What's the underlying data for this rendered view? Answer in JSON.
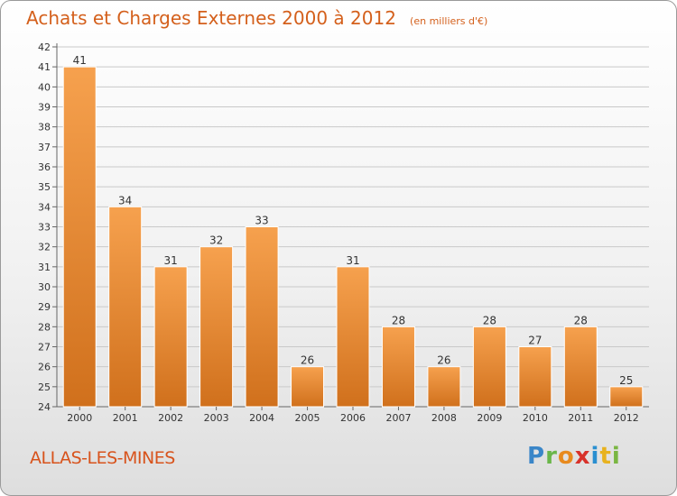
{
  "header": {
    "title": "Achats et Charges Externes 2000 à 2012",
    "unit": "(en milliers d'€)"
  },
  "footer": {
    "commune": "ALLAS-LES-MINES",
    "logo_letters": [
      "P",
      "r",
      "o",
      "x",
      "i",
      "t",
      "i"
    ],
    "logo_colors": [
      "#3a86c8",
      "#6ab64a",
      "#e88a1e",
      "#d8322a",
      "#2a8fd0",
      "#e8b21e",
      "#7ab642"
    ]
  },
  "colors": {
    "title": "#d4601c",
    "bar_light": "#f6a14e",
    "bar_dark": "#d0701c",
    "grid": "#c9c9c9",
    "text": "#333333"
  },
  "chart_data": {
    "type": "bar",
    "categories": [
      "2000",
      "2001",
      "2002",
      "2003",
      "2004",
      "2005",
      "2006",
      "2007",
      "2008",
      "2009",
      "2010",
      "2011",
      "2012"
    ],
    "values": [
      41,
      34,
      31,
      32,
      33,
      26,
      31,
      28,
      26,
      28,
      27,
      28,
      25
    ],
    "data_labels": [
      "41",
      "34",
      "31",
      "32",
      "33",
      "26",
      "31",
      "28",
      "26",
      "28",
      "27",
      "28",
      "25"
    ],
    "ylim": [
      24,
      42
    ],
    "yticks": [
      "24",
      "25",
      "26",
      "27",
      "28",
      "29",
      "30",
      "31",
      "32",
      "33",
      "34",
      "35",
      "36",
      "37",
      "38",
      "39",
      "40",
      "41",
      "42"
    ],
    "grid": true,
    "legend": "none"
  }
}
